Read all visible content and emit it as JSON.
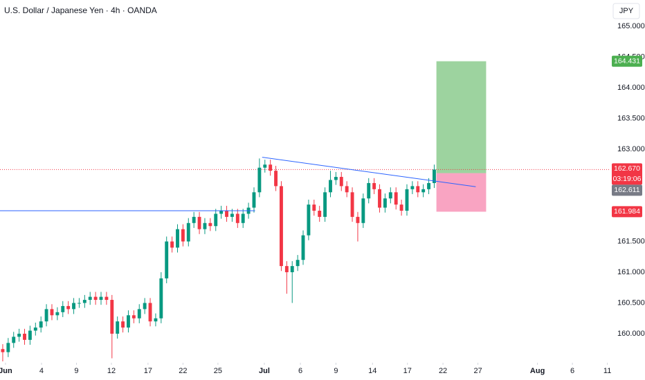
{
  "chart_data": {
    "type": "candlestick",
    "title": "U.S. Dollar / Japanese Yen · 4h · OANDA",
    "currency": "JPY",
    "up_color": "#089981",
    "down_color": "#f23645",
    "grid": false,
    "x": [
      0,
      1,
      2,
      3,
      4,
      5,
      6,
      7,
      8,
      9,
      10,
      11,
      12,
      13,
      14,
      15,
      16,
      17,
      18,
      19,
      20,
      21,
      22,
      23,
      24,
      25,
      26,
      27,
      28,
      29,
      30,
      31,
      32,
      33,
      34,
      35,
      36,
      37,
      38,
      39,
      40,
      41,
      42,
      43,
      44,
      45,
      46,
      47,
      48,
      49,
      50,
      51,
      52,
      53,
      54,
      55,
      56,
      57,
      58,
      59,
      60,
      61,
      62,
      63,
      64,
      65,
      66,
      67,
      68,
      69,
      70,
      71,
      72,
      73,
      74,
      75,
      76,
      77,
      78,
      79
    ],
    "open": [
      159.75,
      159.7,
      159.85,
      159.95,
      160.0,
      159.9,
      160.05,
      160.1,
      160.2,
      160.4,
      160.3,
      160.35,
      160.45,
      160.4,
      160.5,
      160.5,
      160.55,
      160.6,
      160.55,
      160.6,
      160.55,
      160.0,
      160.2,
      160.1,
      160.3,
      160.25,
      160.4,
      160.5,
      160.2,
      160.25,
      160.9,
      161.5,
      161.4,
      161.7,
      161.5,
      161.8,
      161.9,
      161.7,
      161.8,
      161.75,
      161.95,
      162.0,
      161.9,
      161.95,
      161.8,
      161.95,
      162.05,
      162.3,
      162.7,
      162.75,
      162.65,
      162.4,
      161.1,
      161.0,
      161.1,
      161.2,
      161.6,
      162.1,
      162.0,
      161.9,
      162.3,
      162.5,
      162.55,
      162.4,
      162.3,
      161.9,
      161.8,
      162.2,
      162.45,
      162.35,
      162.05,
      162.2,
      162.3,
      162.1,
      162.0,
      162.35,
      162.4,
      162.3,
      162.35,
      162.45
    ],
    "high": [
      159.83,
      159.93,
      160.03,
      160.08,
      160.08,
      160.13,
      160.18,
      160.28,
      160.48,
      160.48,
      160.43,
      160.53,
      160.53,
      160.58,
      160.58,
      160.63,
      160.68,
      160.68,
      160.68,
      160.68,
      160.63,
      160.28,
      160.28,
      160.38,
      160.38,
      160.48,
      160.58,
      160.58,
      160.33,
      161.0,
      161.58,
      161.58,
      161.78,
      161.78,
      161.88,
      161.98,
      161.98,
      161.88,
      161.88,
      162.03,
      162.08,
      162.08,
      162.03,
      162.03,
      162.03,
      162.13,
      162.38,
      162.85,
      162.83,
      162.83,
      162.73,
      162.48,
      161.18,
      161.18,
      161.28,
      161.68,
      162.18,
      162.18,
      162.08,
      162.38,
      162.65,
      162.63,
      162.63,
      162.48,
      162.38,
      161.98,
      162.28,
      162.53,
      162.53,
      162.43,
      162.28,
      162.38,
      162.38,
      162.18,
      162.43,
      162.48,
      162.48,
      162.43,
      162.53,
      162.75
    ],
    "low": [
      159.55,
      159.62,
      159.77,
      159.87,
      159.82,
      159.82,
      159.97,
      160.02,
      160.12,
      160.22,
      160.22,
      160.27,
      160.32,
      160.32,
      160.42,
      160.42,
      160.47,
      160.47,
      160.47,
      160.47,
      159.6,
      159.92,
      160.02,
      160.02,
      160.17,
      160.17,
      160.32,
      160.12,
      160.12,
      160.17,
      160.82,
      161.32,
      161.32,
      161.42,
      161.42,
      161.72,
      161.62,
      161.62,
      161.67,
      161.67,
      161.87,
      161.82,
      161.82,
      161.72,
      161.72,
      161.87,
      161.97,
      162.22,
      162.62,
      162.57,
      162.32,
      161.02,
      160.65,
      160.5,
      161.02,
      161.12,
      161.52,
      161.92,
      161.82,
      161.82,
      162.22,
      162.42,
      162.32,
      162.22,
      161.82,
      161.5,
      161.72,
      162.12,
      162.27,
      161.97,
      161.97,
      162.12,
      162.02,
      161.92,
      161.92,
      162.27,
      162.22,
      162.22,
      162.27,
      162.37
    ],
    "close": [
      159.7,
      159.85,
      159.95,
      160.0,
      159.9,
      160.05,
      160.1,
      160.2,
      160.4,
      160.3,
      160.35,
      160.45,
      160.4,
      160.5,
      160.5,
      160.55,
      160.6,
      160.55,
      160.6,
      160.55,
      160.0,
      160.2,
      160.1,
      160.3,
      160.25,
      160.4,
      160.5,
      160.2,
      160.25,
      160.9,
      161.5,
      161.4,
      161.7,
      161.5,
      161.8,
      161.9,
      161.7,
      161.8,
      161.75,
      161.95,
      162.0,
      161.9,
      161.95,
      161.8,
      161.95,
      162.05,
      162.3,
      162.7,
      162.75,
      162.65,
      162.4,
      161.1,
      161.0,
      161.1,
      161.2,
      161.6,
      162.1,
      162.0,
      161.9,
      162.3,
      162.5,
      162.55,
      162.4,
      162.3,
      161.9,
      161.8,
      162.2,
      162.45,
      162.35,
      162.05,
      162.2,
      162.3,
      162.1,
      162.0,
      162.35,
      162.4,
      162.3,
      162.35,
      162.45,
      162.67
    ],
    "xlim": [
      -0.5,
      111
    ],
    "xticks": [
      {
        "value": 0.5,
        "label": "Jun"
      },
      {
        "value": 7.1,
        "label": "4"
      },
      {
        "value": 13.5,
        "label": "9"
      },
      {
        "value": 19.9,
        "label": "12"
      },
      {
        "value": 26.6,
        "label": "17"
      },
      {
        "value": 33.0,
        "label": "22"
      },
      {
        "value": 39.4,
        "label": "25"
      },
      {
        "value": 47.9,
        "label": "Jul"
      },
      {
        "value": 54.5,
        "label": "6"
      },
      {
        "value": 61.0,
        "label": "9"
      },
      {
        "value": 67.7,
        "label": "14"
      },
      {
        "value": 74.1,
        "label": "17"
      },
      {
        "value": 80.6,
        "label": "22"
      },
      {
        "value": 87.0,
        "label": "27"
      },
      {
        "value": 97.9,
        "label": "Aug"
      },
      {
        "value": 104.3,
        "label": "6"
      },
      {
        "value": 110.7,
        "label": "11"
      }
    ],
    "ylim": [
      159.528,
      165.427
    ],
    "yticks": [
      {
        "value": 165,
        "label": "165.000"
      },
      {
        "value": 164.5,
        "label": "164.500"
      },
      {
        "value": 164,
        "label": "164.000"
      },
      {
        "value": 163.5,
        "label": "163.500"
      },
      {
        "value": 163,
        "label": "163.000"
      },
      {
        "value": 161.5,
        "label": "161.500"
      },
      {
        "value": 161,
        "label": "161.000"
      },
      {
        "value": 160.5,
        "label": "160.500"
      },
      {
        "value": 160,
        "label": "160.000"
      }
    ],
    "lines": [
      {
        "x": [
          -0.5,
          46.2
        ],
        "y": [
          162.0,
          162.0
        ],
        "color": "#2962ff"
      },
      {
        "x": [
          47.5,
          86.6
        ],
        "y": [
          162.87,
          162.39
        ],
        "color": "#2962ff"
      }
    ],
    "position": {
      "x": [
        79.4,
        88.5
      ],
      "target": {
        "value": 164.431,
        "label": "164.431"
      },
      "entry": {
        "value": 162.611,
        "label": "162.611"
      },
      "stop": {
        "value": 161.984,
        "label": "161.984"
      }
    },
    "last_price": {
      "value": 162.67,
      "label": "162.670"
    },
    "countdown": "03:19:06"
  }
}
